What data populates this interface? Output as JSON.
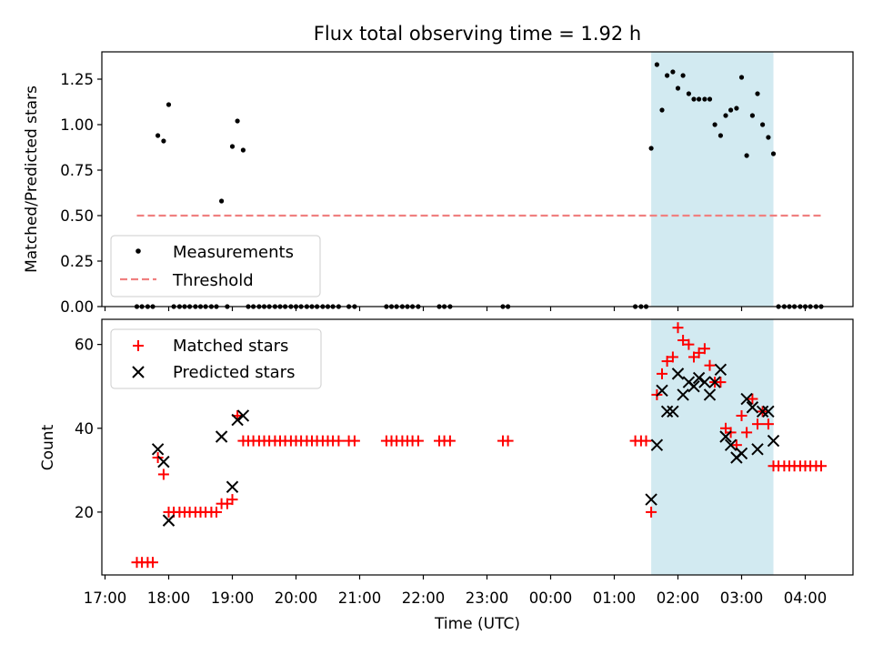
{
  "chart_data": {
    "title": "Flux total observing time = 1.92 h",
    "highlight_band": {
      "start_hour": 25.58,
      "end_hour": 27.5,
      "color": "#add8e6"
    },
    "x_axis": {
      "label": "Time (UTC)",
      "range_hours": [
        16.95,
        28.75
      ],
      "ticks": [
        {
          "hour": 17,
          "label": "17:00"
        },
        {
          "hour": 18,
          "label": "18:00"
        },
        {
          "hour": 19,
          "label": "19:00"
        },
        {
          "hour": 20,
          "label": "20:00"
        },
        {
          "hour": 21,
          "label": "21:00"
        },
        {
          "hour": 22,
          "label": "22:00"
        },
        {
          "hour": 23,
          "label": "23:00"
        },
        {
          "hour": 24,
          "label": "00:00"
        },
        {
          "hour": 25,
          "label": "01:00"
        },
        {
          "hour": 26,
          "label": "02:00"
        },
        {
          "hour": 27,
          "label": "03:00"
        },
        {
          "hour": 28,
          "label": "04:00"
        }
      ]
    },
    "panels": [
      {
        "type": "scatter",
        "ylabel": "Matched/Predicted stars",
        "ylim": [
          0,
          1.4
        ],
        "yticks": [
          "0.00",
          "0.25",
          "0.50",
          "0.75",
          "1.00",
          "1.25"
        ],
        "ytick_values": [
          0,
          0.25,
          0.5,
          0.75,
          1.0,
          1.25
        ],
        "legend": {
          "position": "lower-left",
          "entries": [
            "Measurements",
            "Threshold"
          ]
        },
        "threshold": {
          "name": "Threshold",
          "value": 0.5,
          "x_range": [
            17.5,
            28.25
          ],
          "color": "#f08080"
        },
        "series": [
          {
            "name": "Measurements",
            "marker": "dot",
            "color": "#000000",
            "points": [
              [
                17.5,
                0
              ],
              [
                17.58,
                0
              ],
              [
                17.67,
                0
              ],
              [
                17.75,
                0
              ],
              [
                17.83,
                0.94
              ],
              [
                17.92,
                0.91
              ],
              [
                18.0,
                1.11
              ],
              [
                18.08,
                0
              ],
              [
                18.17,
                0
              ],
              [
                18.25,
                0
              ],
              [
                18.33,
                0
              ],
              [
                18.42,
                0
              ],
              [
                18.5,
                0
              ],
              [
                18.58,
                0
              ],
              [
                18.67,
                0
              ],
              [
                18.75,
                0
              ],
              [
                18.83,
                0.58
              ],
              [
                18.92,
                0
              ],
              [
                19.0,
                0.88
              ],
              [
                19.08,
                1.02
              ],
              [
                19.17,
                0.86
              ],
              [
                19.25,
                0
              ],
              [
                19.33,
                0
              ],
              [
                19.42,
                0
              ],
              [
                19.5,
                0
              ],
              [
                19.58,
                0
              ],
              [
                19.67,
                0
              ],
              [
                19.75,
                0
              ],
              [
                19.83,
                0
              ],
              [
                19.92,
                0
              ],
              [
                20.0,
                0
              ],
              [
                20.08,
                0
              ],
              [
                20.17,
                0
              ],
              [
                20.25,
                0
              ],
              [
                20.33,
                0
              ],
              [
                20.42,
                0
              ],
              [
                20.5,
                0
              ],
              [
                20.58,
                0
              ],
              [
                20.67,
                0
              ],
              [
                20.83,
                0
              ],
              [
                20.92,
                0
              ],
              [
                21.42,
                0
              ],
              [
                21.5,
                0
              ],
              [
                21.58,
                0
              ],
              [
                21.67,
                0
              ],
              [
                21.75,
                0
              ],
              [
                21.83,
                0
              ],
              [
                21.92,
                0
              ],
              [
                22.25,
                0
              ],
              [
                22.33,
                0
              ],
              [
                22.42,
                0
              ],
              [
                23.25,
                0
              ],
              [
                23.33,
                0
              ],
              [
                25.33,
                0
              ],
              [
                25.42,
                0
              ],
              [
                25.5,
                0
              ],
              [
                25.58,
                0.87
              ],
              [
                25.67,
                1.33
              ],
              [
                25.75,
                1.08
              ],
              [
                25.83,
                1.27
              ],
              [
                25.92,
                1.29
              ],
              [
                26.0,
                1.2
              ],
              [
                26.08,
                1.27
              ],
              [
                26.17,
                1.17
              ],
              [
                26.25,
                1.14
              ],
              [
                26.33,
                1.14
              ],
              [
                26.42,
                1.14
              ],
              [
                26.5,
                1.14
              ],
              [
                26.58,
                1.0
              ],
              [
                26.67,
                0.94
              ],
              [
                26.75,
                1.05
              ],
              [
                26.83,
                1.08
              ],
              [
                26.92,
                1.09
              ],
              [
                27.0,
                1.26
              ],
              [
                27.08,
                0.83
              ],
              [
                27.17,
                1.05
              ],
              [
                27.25,
                1.17
              ],
              [
                27.33,
                1.0
              ],
              [
                27.42,
                0.93
              ],
              [
                27.5,
                0.84
              ],
              [
                27.58,
                0
              ],
              [
                27.67,
                0
              ],
              [
                27.75,
                0
              ],
              [
                27.83,
                0
              ],
              [
                27.92,
                0
              ],
              [
                28.0,
                0
              ],
              [
                28.08,
                0
              ],
              [
                28.17,
                0
              ],
              [
                28.25,
                0
              ]
            ]
          }
        ]
      },
      {
        "type": "scatter",
        "ylabel": "Count",
        "ylim": [
          5,
          66
        ],
        "yticks": [
          "20",
          "40",
          "60"
        ],
        "ytick_values": [
          20,
          40,
          60
        ],
        "legend": {
          "position": "top-left",
          "entries": [
            "Matched stars",
            "Predicted stars"
          ]
        },
        "series": [
          {
            "name": "Matched stars",
            "marker": "plus",
            "color": "#ff0000",
            "points": [
              [
                17.5,
                8
              ],
              [
                17.58,
                8
              ],
              [
                17.67,
                8
              ],
              [
                17.75,
                8
              ],
              [
                17.83,
                33
              ],
              [
                17.92,
                29
              ],
              [
                18.0,
                20
              ],
              [
                18.08,
                20
              ],
              [
                18.17,
                20
              ],
              [
                18.25,
                20
              ],
              [
                18.33,
                20
              ],
              [
                18.42,
                20
              ],
              [
                18.5,
                20
              ],
              [
                18.58,
                20
              ],
              [
                18.67,
                20
              ],
              [
                18.75,
                20
              ],
              [
                18.83,
                22
              ],
              [
                18.92,
                22
              ],
              [
                19.0,
                23
              ],
              [
                19.08,
                43
              ],
              [
                19.17,
                37
              ],
              [
                19.25,
                37
              ],
              [
                19.33,
                37
              ],
              [
                19.42,
                37
              ],
              [
                19.5,
                37
              ],
              [
                19.58,
                37
              ],
              [
                19.67,
                37
              ],
              [
                19.75,
                37
              ],
              [
                19.83,
                37
              ],
              [
                19.92,
                37
              ],
              [
                20.0,
                37
              ],
              [
                20.08,
                37
              ],
              [
                20.17,
                37
              ],
              [
                20.25,
                37
              ],
              [
                20.33,
                37
              ],
              [
                20.42,
                37
              ],
              [
                20.5,
                37
              ],
              [
                20.58,
                37
              ],
              [
                20.67,
                37
              ],
              [
                20.83,
                37
              ],
              [
                20.92,
                37
              ],
              [
                21.42,
                37
              ],
              [
                21.5,
                37
              ],
              [
                21.58,
                37
              ],
              [
                21.67,
                37
              ],
              [
                21.75,
                37
              ],
              [
                21.83,
                37
              ],
              [
                21.92,
                37
              ],
              [
                22.25,
                37
              ],
              [
                22.33,
                37
              ],
              [
                22.42,
                37
              ],
              [
                23.25,
                37
              ],
              [
                23.33,
                37
              ],
              [
                25.33,
                37
              ],
              [
                25.42,
                37
              ],
              [
                25.5,
                37
              ],
              [
                25.58,
                20
              ],
              [
                25.67,
                48
              ],
              [
                25.75,
                53
              ],
              [
                25.83,
                56
              ],
              [
                25.92,
                57
              ],
              [
                26.0,
                64
              ],
              [
                26.08,
                61
              ],
              [
                26.17,
                60
              ],
              [
                26.25,
                57
              ],
              [
                26.33,
                58
              ],
              [
                26.42,
                59
              ],
              [
                26.5,
                55
              ],
              [
                26.58,
                51
              ],
              [
                26.67,
                51
              ],
              [
                26.75,
                40
              ],
              [
                26.83,
                39
              ],
              [
                26.92,
                36
              ],
              [
                27.0,
                43
              ],
              [
                27.08,
                39
              ],
              [
                27.17,
                47
              ],
              [
                27.25,
                41
              ],
              [
                27.33,
                44
              ],
              [
                27.42,
                41
              ],
              [
                27.5,
                31
              ],
              [
                27.58,
                31
              ],
              [
                27.67,
                31
              ],
              [
                27.75,
                31
              ],
              [
                27.83,
                31
              ],
              [
                27.92,
                31
              ],
              [
                28.0,
                31
              ],
              [
                28.08,
                31
              ],
              [
                28.17,
                31
              ],
              [
                28.25,
                31
              ]
            ]
          },
          {
            "name": "Predicted stars",
            "marker": "x",
            "color": "#000000",
            "points": [
              [
                17.83,
                35
              ],
              [
                17.92,
                32
              ],
              [
                18.0,
                18
              ],
              [
                18.83,
                38
              ],
              [
                19.0,
                26
              ],
              [
                19.08,
                42
              ],
              [
                19.17,
                43
              ],
              [
                25.58,
                23
              ],
              [
                25.67,
                36
              ],
              [
                25.75,
                49
              ],
              [
                25.83,
                44
              ],
              [
                25.92,
                44
              ],
              [
                26.0,
                53
              ],
              [
                26.08,
                48
              ],
              [
                26.17,
                51
              ],
              [
                26.25,
                50
              ],
              [
                26.33,
                52
              ],
              [
                26.42,
                51
              ],
              [
                26.5,
                48
              ],
              [
                26.58,
                51
              ],
              [
                26.67,
                54
              ],
              [
                26.75,
                38
              ],
              [
                26.83,
                36
              ],
              [
                26.92,
                33
              ],
              [
                27.0,
                34
              ],
              [
                27.08,
                47
              ],
              [
                27.17,
                45
              ],
              [
                27.25,
                35
              ],
              [
                27.33,
                44
              ],
              [
                27.42,
                44
              ],
              [
                27.5,
                37
              ]
            ]
          }
        ]
      }
    ]
  }
}
